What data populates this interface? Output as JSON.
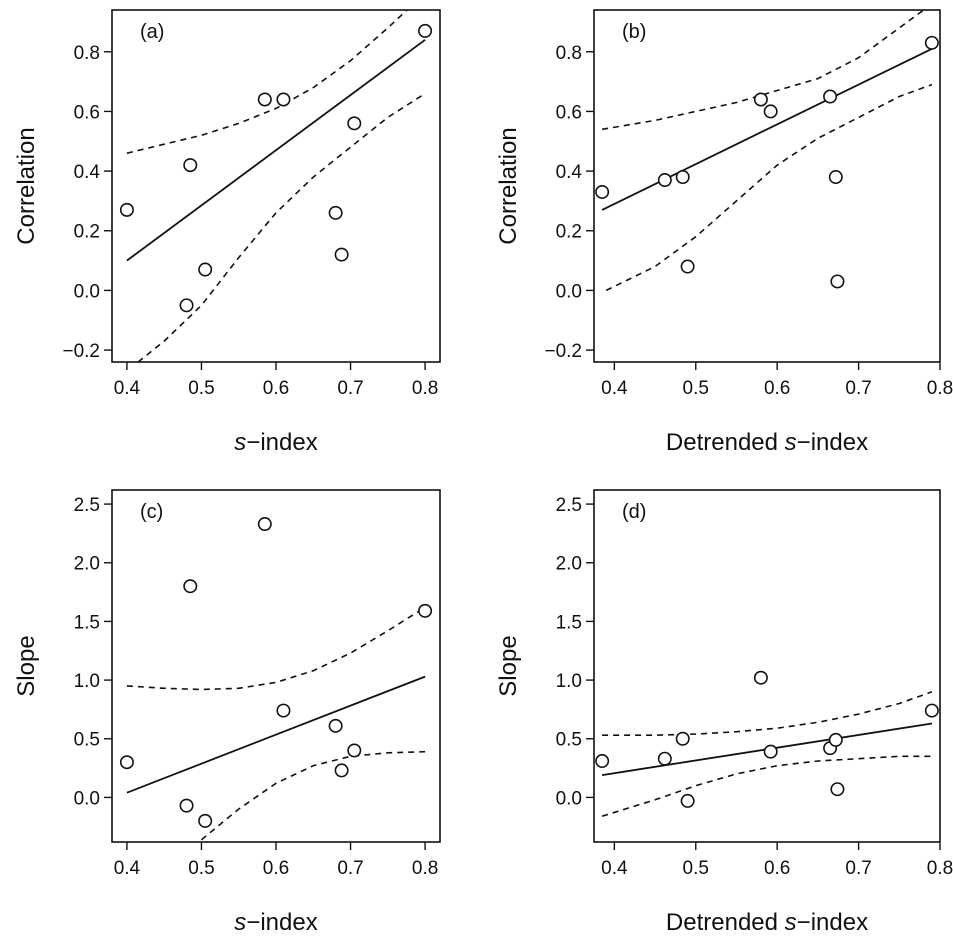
{
  "chart_data": [
    {
      "type": "scatter",
      "panel_label": "(a)",
      "xlabel": "s−index",
      "xlabel_parts": [
        "s",
        "−index"
      ],
      "ylabel": "Correlation",
      "xlim": [
        0.38,
        0.82
      ],
      "ylim": [
        -0.24,
        0.94
      ],
      "xticks": [
        "0.4",
        "0.5",
        "0.6",
        "0.7",
        "0.8"
      ],
      "yticks": [
        "−0.2",
        "0.0",
        "0.2",
        "0.4",
        "0.6",
        "0.8"
      ],
      "points": [
        {
          "x": 0.4,
          "y": 0.27
        },
        {
          "x": 0.48,
          "y": -0.05
        },
        {
          "x": 0.485,
          "y": 0.42
        },
        {
          "x": 0.505,
          "y": 0.07
        },
        {
          "x": 0.585,
          "y": 0.64
        },
        {
          "x": 0.61,
          "y": 0.64
        },
        {
          "x": 0.68,
          "y": 0.26
        },
        {
          "x": 0.688,
          "y": 0.12
        },
        {
          "x": 0.705,
          "y": 0.56
        },
        {
          "x": 0.8,
          "y": 0.87
        }
      ],
      "fit": {
        "x": [
          0.4,
          0.8
        ],
        "y": [
          0.1,
          0.84
        ]
      },
      "ci_upper": {
        "x": [
          0.4,
          0.45,
          0.5,
          0.55,
          0.6,
          0.65,
          0.7,
          0.75,
          0.78
        ],
        "y": [
          0.46,
          0.49,
          0.52,
          0.56,
          0.61,
          0.68,
          0.77,
          0.88,
          0.95
        ]
      },
      "ci_lower": {
        "x": [
          0.415,
          0.45,
          0.5,
          0.55,
          0.6,
          0.65,
          0.7,
          0.75,
          0.8
        ],
        "y": [
          -0.24,
          -0.17,
          -0.05,
          0.11,
          0.26,
          0.38,
          0.48,
          0.58,
          0.66
        ]
      }
    },
    {
      "type": "scatter",
      "panel_label": "(b)",
      "xlabel": "Detrended s−index",
      "xlabel_parts": [
        "Detrended ",
        "s",
        "−index"
      ],
      "ylabel": "Correlation",
      "xlim": [
        0.375,
        0.8
      ],
      "ylim": [
        -0.24,
        0.94
      ],
      "xticks": [
        "0.4",
        "0.5",
        "0.6",
        "0.7",
        "0.8"
      ],
      "yticks": [
        "−0.2",
        "0.0",
        "0.2",
        "0.4",
        "0.6",
        "0.8"
      ],
      "points": [
        {
          "x": 0.385,
          "y": 0.33
        },
        {
          "x": 0.462,
          "y": 0.37
        },
        {
          "x": 0.484,
          "y": 0.38
        },
        {
          "x": 0.49,
          "y": 0.08
        },
        {
          "x": 0.58,
          "y": 0.64
        },
        {
          "x": 0.592,
          "y": 0.6
        },
        {
          "x": 0.665,
          "y": 0.65
        },
        {
          "x": 0.672,
          "y": 0.38
        },
        {
          "x": 0.674,
          "y": 0.03
        },
        {
          "x": 0.79,
          "y": 0.83
        }
      ],
      "fit": {
        "x": [
          0.385,
          0.79
        ],
        "y": [
          0.27,
          0.81
        ]
      },
      "ci_upper": {
        "x": [
          0.385,
          0.45,
          0.5,
          0.55,
          0.6,
          0.65,
          0.7,
          0.75,
          0.78
        ],
        "y": [
          0.54,
          0.57,
          0.6,
          0.63,
          0.67,
          0.71,
          0.78,
          0.88,
          0.94
        ]
      },
      "ci_lower": {
        "x": [
          0.39,
          0.45,
          0.5,
          0.55,
          0.6,
          0.65,
          0.7,
          0.75,
          0.79
        ],
        "y": [
          0.0,
          0.08,
          0.18,
          0.3,
          0.42,
          0.51,
          0.58,
          0.65,
          0.69
        ]
      }
    },
    {
      "type": "scatter",
      "panel_label": "(c)",
      "xlabel": "s−index",
      "xlabel_parts": [
        "s",
        "−index"
      ],
      "ylabel": "Slope",
      "xlim": [
        0.38,
        0.82
      ],
      "ylim": [
        -0.38,
        2.62
      ],
      "xticks": [
        "0.4",
        "0.5",
        "0.6",
        "0.7",
        "0.8"
      ],
      "yticks": [
        "0.0",
        "0.5",
        "1.0",
        "1.5",
        "2.0",
        "2.5"
      ],
      "points": [
        {
          "x": 0.4,
          "y": 0.3
        },
        {
          "x": 0.48,
          "y": -0.07
        },
        {
          "x": 0.485,
          "y": 1.8
        },
        {
          "x": 0.505,
          "y": -0.2
        },
        {
          "x": 0.585,
          "y": 2.33
        },
        {
          "x": 0.61,
          "y": 0.74
        },
        {
          "x": 0.68,
          "y": 0.61
        },
        {
          "x": 0.688,
          "y": 0.23
        },
        {
          "x": 0.705,
          "y": 0.4
        },
        {
          "x": 0.8,
          "y": 1.59
        }
      ],
      "fit": {
        "x": [
          0.4,
          0.8
        ],
        "y": [
          0.04,
          1.03
        ]
      },
      "ci_upper": {
        "x": [
          0.4,
          0.45,
          0.5,
          0.55,
          0.6,
          0.65,
          0.7,
          0.75,
          0.8
        ],
        "y": [
          0.95,
          0.93,
          0.92,
          0.93,
          0.98,
          1.08,
          1.23,
          1.42,
          1.62
        ]
      },
      "ci_lower": {
        "x": [
          0.5,
          0.55,
          0.6,
          0.65,
          0.7,
          0.75,
          0.8
        ],
        "y": [
          -0.36,
          -0.1,
          0.12,
          0.27,
          0.35,
          0.38,
          0.39
        ]
      }
    },
    {
      "type": "scatter",
      "panel_label": "(d)",
      "xlabel": "Detrended s−index",
      "xlabel_parts": [
        "Detrended ",
        "s",
        "−index"
      ],
      "ylabel": "Slope",
      "xlim": [
        0.375,
        0.8
      ],
      "ylim": [
        -0.38,
        2.62
      ],
      "xticks": [
        "0.4",
        "0.5",
        "0.6",
        "0.7",
        "0.8"
      ],
      "yticks": [
        "0.0",
        "0.5",
        "1.0",
        "1.5",
        "2.0",
        "2.5"
      ],
      "points": [
        {
          "x": 0.385,
          "y": 0.31
        },
        {
          "x": 0.462,
          "y": 0.33
        },
        {
          "x": 0.484,
          "y": 0.5
        },
        {
          "x": 0.49,
          "y": -0.03
        },
        {
          "x": 0.58,
          "y": 1.02
        },
        {
          "x": 0.592,
          "y": 0.39
        },
        {
          "x": 0.665,
          "y": 0.42
        },
        {
          "x": 0.672,
          "y": 0.49
        },
        {
          "x": 0.674,
          "y": 0.07
        },
        {
          "x": 0.79,
          "y": 0.74
        }
      ],
      "fit": {
        "x": [
          0.385,
          0.79
        ],
        "y": [
          0.19,
          0.63
        ]
      },
      "ci_upper": {
        "x": [
          0.385,
          0.45,
          0.5,
          0.55,
          0.6,
          0.65,
          0.7,
          0.75,
          0.79
        ],
        "y": [
          0.53,
          0.53,
          0.54,
          0.56,
          0.59,
          0.64,
          0.71,
          0.8,
          0.9
        ]
      },
      "ci_lower": {
        "x": [
          0.385,
          0.45,
          0.5,
          0.55,
          0.6,
          0.65,
          0.7,
          0.75,
          0.79
        ],
        "y": [
          -0.16,
          -0.02,
          0.1,
          0.2,
          0.27,
          0.31,
          0.33,
          0.35,
          0.35
        ]
      }
    }
  ]
}
